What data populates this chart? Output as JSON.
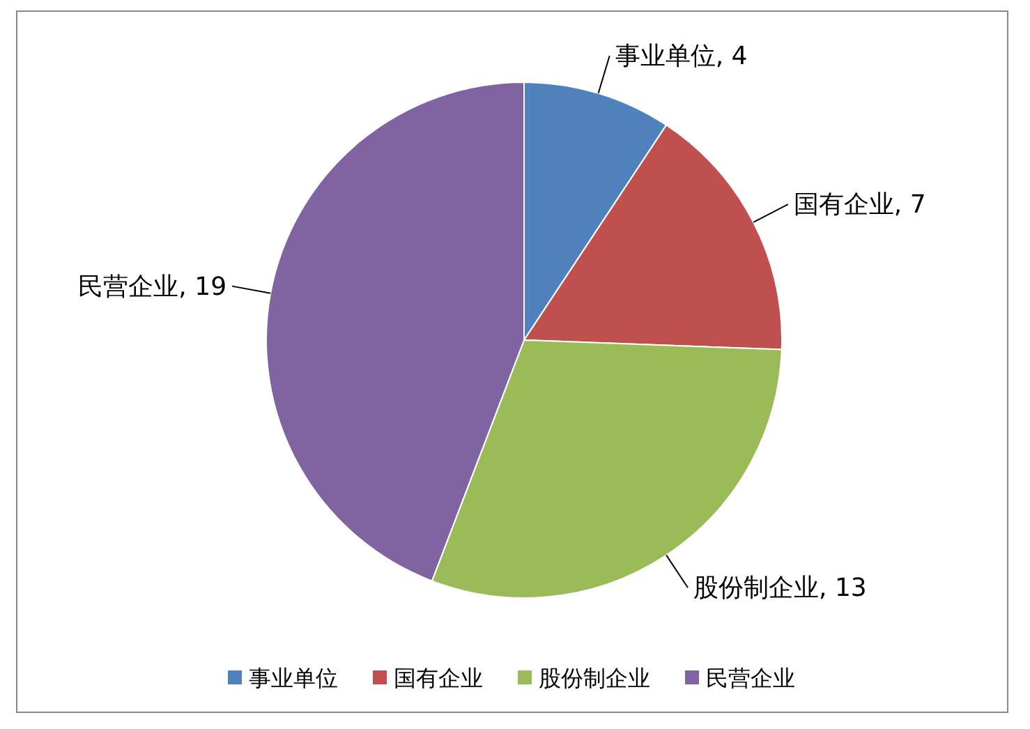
{
  "chart_data": {
    "type": "pie",
    "categories": [
      "事业单位",
      "国有企业",
      "股份制企业",
      "民营企业"
    ],
    "values": [
      4,
      7,
      13,
      19
    ],
    "value_labels": [
      "事业单位, 4",
      "国有企业, 7",
      "股份制企业, 13",
      "民营企业, 19"
    ],
    "colors": [
      "#4f81bd",
      "#c0504d",
      "#9bbb59",
      "#8064a2"
    ],
    "legend": "bottom"
  }
}
